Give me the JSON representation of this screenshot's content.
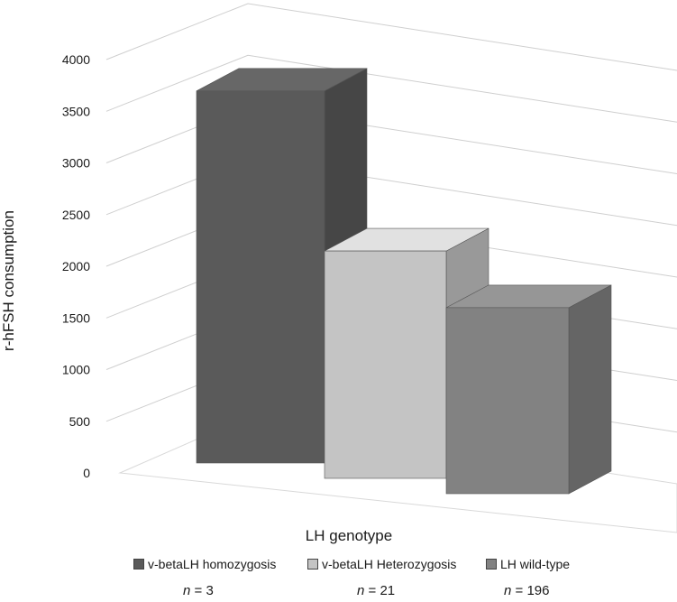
{
  "chart_data": {
    "type": "bar",
    "categories": [
      "v-betaLH homozygosis",
      "v-betaLH Heterozygosis",
      "LH wild-type"
    ],
    "values": [
      3600,
      2200,
      1800
    ],
    "xlabel": "LH genotype",
    "ylabel": "r-hFSH consumption",
    "ylim": [
      0,
      4000
    ],
    "yticks": [
      0,
      500,
      1000,
      1500,
      2000,
      2500,
      3000,
      3500,
      4000
    ],
    "grid": true,
    "legend_position": "bottom",
    "colors": {
      "v-betaLH homozygosis": "#5a5a5a",
      "v-betaLH Heterozygosis": "#c4c4c4",
      "LH wild-type": "#828282"
    },
    "annotations": [
      {
        "n": "n",
        "value": "= 3"
      },
      {
        "n": "n",
        "value": "= 21"
      },
      {
        "n": "n",
        "value": "= 196"
      }
    ]
  }
}
